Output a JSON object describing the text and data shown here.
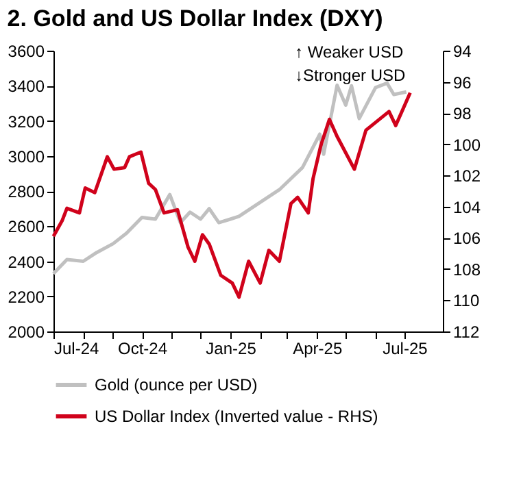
{
  "chart_data": {
    "type": "line",
    "title": "2. Gold and US Dollar Index (DXY)",
    "xlim": [
      "2024-07-01",
      "2025-08-10"
    ],
    "xticks": [
      {
        "value": "2024-07-01",
        "label": "Jul-24"
      },
      {
        "value": "2024-08-01",
        "label": null
      },
      {
        "value": "2024-09-01",
        "label": null
      },
      {
        "value": "2024-10-01",
        "label": "Oct-24"
      },
      {
        "value": "2024-11-01",
        "label": null
      },
      {
        "value": "2024-12-01",
        "label": null
      },
      {
        "value": "2025-01-01",
        "label": "Jan-25"
      },
      {
        "value": "2025-02-01",
        "label": null
      },
      {
        "value": "2025-03-01",
        "label": null
      },
      {
        "value": "2025-04-01",
        "label": "Apr-25"
      },
      {
        "value": "2025-05-01",
        "label": null
      },
      {
        "value": "2025-06-01",
        "label": null
      },
      {
        "value": "2025-07-01",
        "label": "Jul-25"
      }
    ],
    "ylim": [
      2000,
      3600
    ],
    "yticks": [
      2000,
      2200,
      2400,
      2600,
      2800,
      3000,
      3200,
      3400,
      3600
    ],
    "y2lim": [
      112,
      94
    ],
    "y2ticks": [
      94,
      96,
      98,
      100,
      102,
      104,
      106,
      108,
      110,
      112
    ],
    "grid": false,
    "legend": "bottom",
    "marker": "none",
    "line_style": "solid",
    "annotations": [
      "↑ Weaker USD",
      "↓Stronger USD"
    ],
    "series": [
      {
        "name": "Gold (ounce per USD)",
        "color": "#c0c0c0",
        "x": [
          "2024-07-01",
          "2024-07-15",
          "2024-08-01",
          "2024-08-15",
          "2024-09-01",
          "2024-09-15",
          "2024-10-01",
          "2024-10-15",
          "2024-10-30",
          "2024-11-10",
          "2024-11-20",
          "2024-12-01",
          "2024-12-10",
          "2024-12-20",
          "2025-01-01",
          "2025-01-10",
          "2025-02-21",
          "2025-03-17",
          "2025-04-04",
          "2025-04-08",
          "2025-04-22",
          "2025-05-01",
          "2025-05-07",
          "2025-05-15",
          "2025-06-01",
          "2025-06-13",
          "2025-06-20",
          "2025-07-03"
        ],
        "values": [
          2330,
          2410,
          2400,
          2450,
          2500,
          2560,
          2650,
          2640,
          2780,
          2620,
          2680,
          2640,
          2700,
          2620,
          2640,
          2656,
          2808,
          2934,
          3124,
          3010,
          3403,
          3290,
          3400,
          3213,
          3390,
          3415,
          3350,
          3365
        ]
      },
      {
        "name": "US Dollar Index (Inverted value - RHS)",
        "color": "#d0021b",
        "axis": "y2",
        "x": [
          "2024-07-01",
          "2024-07-10",
          "2024-07-15",
          "2024-07-28",
          "2024-08-03",
          "2024-08-13",
          "2024-08-26",
          "2024-09-02",
          "2024-09-13",
          "2024-09-18",
          "2024-09-30",
          "2024-10-08",
          "2024-10-15",
          "2024-10-24",
          "2024-11-07",
          "2024-11-18",
          "2024-11-25",
          "2024-12-03",
          "2024-12-10",
          "2024-12-22",
          "2025-01-03",
          "2025-01-10",
          "2025-01-20",
          "2025-02-01",
          "2025-02-10",
          "2025-02-21",
          "2025-03-05",
          "2025-03-12",
          "2025-03-23",
          "2025-03-28",
          "2025-04-05",
          "2025-04-14",
          "2025-04-22",
          "2025-05-10",
          "2025-05-22",
          "2025-06-15",
          "2025-06-22",
          "2025-07-07"
        ],
        "values": [
          105.9,
          104.9,
          104.1,
          104.4,
          102.8,
          103.1,
          100.8,
          101.6,
          101.5,
          100.8,
          100.5,
          102.5,
          102.9,
          104.4,
          104.2,
          106.6,
          107.5,
          105.8,
          106.4,
          108.4,
          108.9,
          109.8,
          107.5,
          108.9,
          106.8,
          107.5,
          103.8,
          103.4,
          104.4,
          102.2,
          100.1,
          98.4,
          99.5,
          101.6,
          99.1,
          97.9,
          98.8,
          96.7
        ]
      }
    ]
  }
}
